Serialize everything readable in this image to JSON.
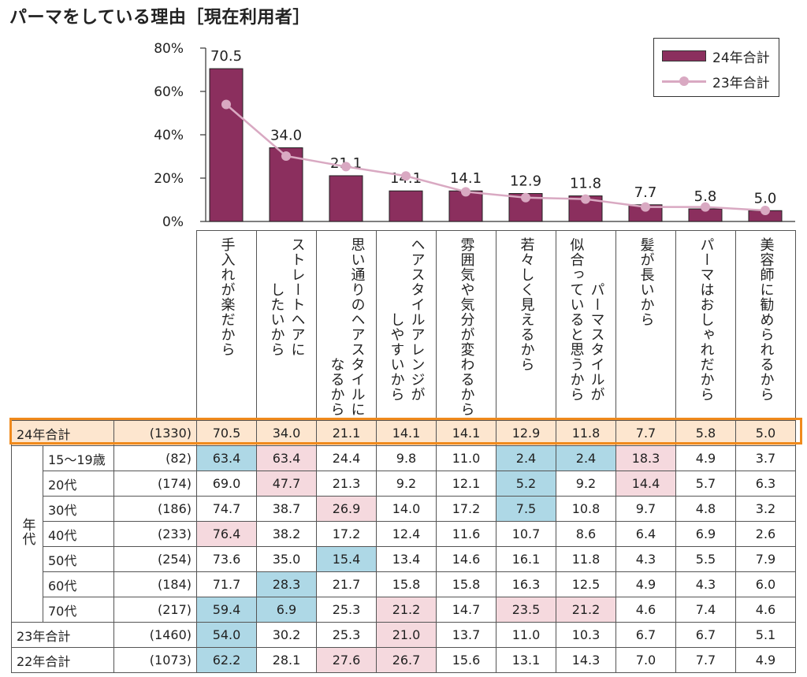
{
  "title": "パーマをしている理由［現在利用者］",
  "legend": {
    "bar_label": "24年合計",
    "line_label": "23年合計"
  },
  "chart_data": {
    "type": "bar",
    "title": "パーマをしている理由［現在利用者］",
    "ylim": [
      0,
      80
    ],
    "yticks": [
      "0%",
      "20%",
      "40%",
      "60%",
      "80%"
    ],
    "categories": [
      "手入れが楽だから",
      "ストレートヘアにしたいから",
      "思い通りのヘアスタイルになるから",
      "ヘアスタイルアレンジがしやすいから",
      "雰囲気や気分が変わるから",
      "若々しく見えるから",
      "パーマスタイルが似合っていると思うから",
      "髪が長いから",
      "パーマはおしゃれだから",
      "美容師に勧められるから"
    ],
    "series": [
      {
        "name": "24年合計",
        "type": "bar",
        "values": [
          70.5,
          34.0,
          21.1,
          14.1,
          14.1,
          12.9,
          11.8,
          7.7,
          5.8,
          5.0
        ]
      },
      {
        "name": "23年合計",
        "type": "line",
        "values": [
          54.0,
          30.2,
          25.3,
          21.0,
          13.7,
          11.0,
          10.3,
          6.7,
          6.7,
          5.1
        ]
      }
    ],
    "bar_labels": [
      "70.5",
      "34.0",
      "21.1",
      "14.1",
      "14.1",
      "12.9",
      "11.8",
      "7.7",
      "5.8",
      "5.0"
    ]
  },
  "table": {
    "col_headers": [
      [
        "手入れが楽だから"
      ],
      [
        "したいから",
        "ストレートヘアに"
      ],
      [
        "なるから",
        "思い通りのヘアスタイルに"
      ],
      [
        "しやすいから",
        "ヘアスタイルアレンジが"
      ],
      [
        "雰囲気や気分が変わるから"
      ],
      [
        "若々しく見えるから"
      ],
      [
        "似合っていると思うから",
        "パーマスタイルが"
      ],
      [
        "髪が長いから"
      ],
      [
        "パーマはおしゃれだから"
      ],
      [
        "美容師に勧められるから"
      ]
    ],
    "age_group_label": "年代",
    "rows": [
      {
        "label": "24年合計",
        "n": "(1330)",
        "values": [
          "70.5",
          "34.0",
          "21.1",
          "14.1",
          "14.1",
          "12.9",
          "11.8",
          "7.7",
          "5.8",
          "5.0"
        ],
        "hl": [
          "",
          "",
          "",
          "",
          "",
          "",
          "",
          "",
          "",
          ""
        ]
      },
      {
        "label": "15～19歳",
        "n": "(82)",
        "values": [
          "63.4",
          "63.4",
          "24.4",
          "9.8",
          "11.0",
          "2.4",
          "2.4",
          "18.3",
          "4.9",
          "3.7"
        ],
        "hl": [
          "blue",
          "pink",
          "",
          "",
          "",
          "blue",
          "blue",
          "pink",
          "",
          ""
        ]
      },
      {
        "label": "20代",
        "n": "(174)",
        "values": [
          "69.0",
          "47.7",
          "21.3",
          "9.2",
          "12.1",
          "5.2",
          "9.2",
          "14.4",
          "5.7",
          "6.3"
        ],
        "hl": [
          "",
          "pink",
          "",
          "",
          "",
          "blue",
          "",
          "pink",
          "",
          ""
        ]
      },
      {
        "label": "30代",
        "n": "(186)",
        "values": [
          "74.7",
          "38.7",
          "26.9",
          "14.0",
          "17.2",
          "7.5",
          "10.8",
          "9.7",
          "4.8",
          "3.2"
        ],
        "hl": [
          "",
          "",
          "pink",
          "",
          "",
          "blue",
          "",
          "",
          "",
          ""
        ]
      },
      {
        "label": "40代",
        "n": "(233)",
        "values": [
          "76.4",
          "38.2",
          "17.2",
          "12.4",
          "11.6",
          "10.7",
          "8.6",
          "6.4",
          "6.9",
          "2.6"
        ],
        "hl": [
          "pink",
          "",
          "",
          "",
          "",
          "",
          "",
          "",
          "",
          ""
        ]
      },
      {
        "label": "50代",
        "n": "(254)",
        "values": [
          "73.6",
          "35.0",
          "15.4",
          "13.4",
          "14.6",
          "16.1",
          "11.8",
          "4.3",
          "5.5",
          "7.9"
        ],
        "hl": [
          "",
          "",
          "blue",
          "",
          "",
          "",
          "",
          "",
          "",
          ""
        ]
      },
      {
        "label": "60代",
        "n": "(184)",
        "values": [
          "71.7",
          "28.3",
          "21.7",
          "15.8",
          "15.8",
          "16.3",
          "12.5",
          "4.9",
          "4.3",
          "6.0"
        ],
        "hl": [
          "",
          "blue",
          "",
          "",
          "",
          "",
          "",
          "",
          "",
          ""
        ]
      },
      {
        "label": "70代",
        "n": "(217)",
        "values": [
          "59.4",
          "6.9",
          "25.3",
          "21.2",
          "14.7",
          "23.5",
          "21.2",
          "4.6",
          "7.4",
          "4.6"
        ],
        "hl": [
          "blue",
          "blue",
          "",
          "pink",
          "",
          "pink",
          "pink",
          "",
          "",
          ""
        ]
      },
      {
        "label": "23年合計",
        "n": "(1460)",
        "values": [
          "54.0",
          "30.2",
          "25.3",
          "21.0",
          "13.7",
          "11.0",
          "10.3",
          "6.7",
          "6.7",
          "5.1"
        ],
        "hl": [
          "blue",
          "",
          "",
          "pink",
          "",
          "",
          "",
          "",
          "",
          ""
        ]
      },
      {
        "label": "22年合計",
        "n": "(1073)",
        "values": [
          "62.2",
          "28.1",
          "27.6",
          "26.7",
          "15.6",
          "13.1",
          "14.3",
          "7.0",
          "7.7",
          "4.9"
        ],
        "hl": [
          "blue",
          "",
          "pink",
          "pink",
          "",
          "",
          "",
          "",
          "",
          ""
        ]
      }
    ]
  },
  "colors": {
    "bar": "#8b2f5e",
    "line": "#d9a9c2",
    "highlight_border": "#f08a1c",
    "total_row_bg": "#fde6cf",
    "blue_cell": "#aed8e6",
    "pink_cell": "#f5d9de"
  }
}
